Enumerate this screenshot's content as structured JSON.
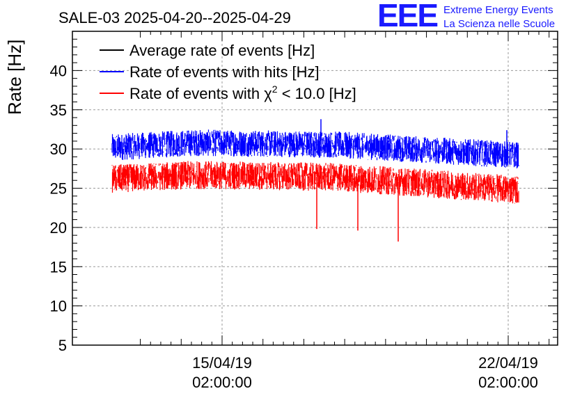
{
  "chart_data": {
    "type": "line",
    "title": "SALE-03 2025-04-20--2025-04-29",
    "xlabel": "",
    "ylabel": "Rate [Hz]",
    "ylim": [
      5,
      45
    ],
    "y_ticks": [
      5,
      10,
      15,
      20,
      25,
      30,
      35,
      40
    ],
    "grid": true,
    "legend_position": "top-left",
    "x_tick_labels": [
      {
        "date": "15/04/19",
        "time": "02:00:00"
      },
      {
        "date": "22/04/19",
        "time": "02:00:00"
      }
    ],
    "x_data_range_days": [
      2.6,
      9.6
    ],
    "x_axis_range_days": [
      1,
      9.8
    ],
    "series": [
      {
        "name": "Average rate of events [Hz]",
        "color": "#000000",
        "values": []
      },
      {
        "name": "Rate of events with hits [Hz]",
        "color": "#0000ff",
        "start_mean": 30.2,
        "mid_mean": 30.8,
        "end_mean": 29.2,
        "noise_range": 3.4,
        "spikes": [
          {
            "day": 7.3,
            "value": 33.8
          },
          {
            "day": 11.9,
            "value": 32.4
          }
        ]
      },
      {
        "name": "Rate of events with χ² < 10.0 [Hz]",
        "color": "#ff0000",
        "start_mean": 26.2,
        "mid_mean": 26.7,
        "end_mean": 24.8,
        "noise_range": 3.6,
        "dips": [
          {
            "day": 6.9,
            "value": 19.8
          },
          {
            "day": 7.9,
            "value": 19.6
          },
          {
            "day": 8.9,
            "value": 18.2
          }
        ]
      }
    ],
    "legend_text": {
      "black": "Average rate of events [Hz]",
      "blue": "Rate of events with hits [Hz]",
      "red_prefix": "Rate of events with ",
      "red_chi": "χ",
      "red_sup": "2",
      "red_suffix": " < 10.0 [Hz]"
    }
  },
  "logo": {
    "letters": "EEE",
    "line1": "Extreme Energy Events",
    "line2": "La Scienza nelle Scuole"
  }
}
